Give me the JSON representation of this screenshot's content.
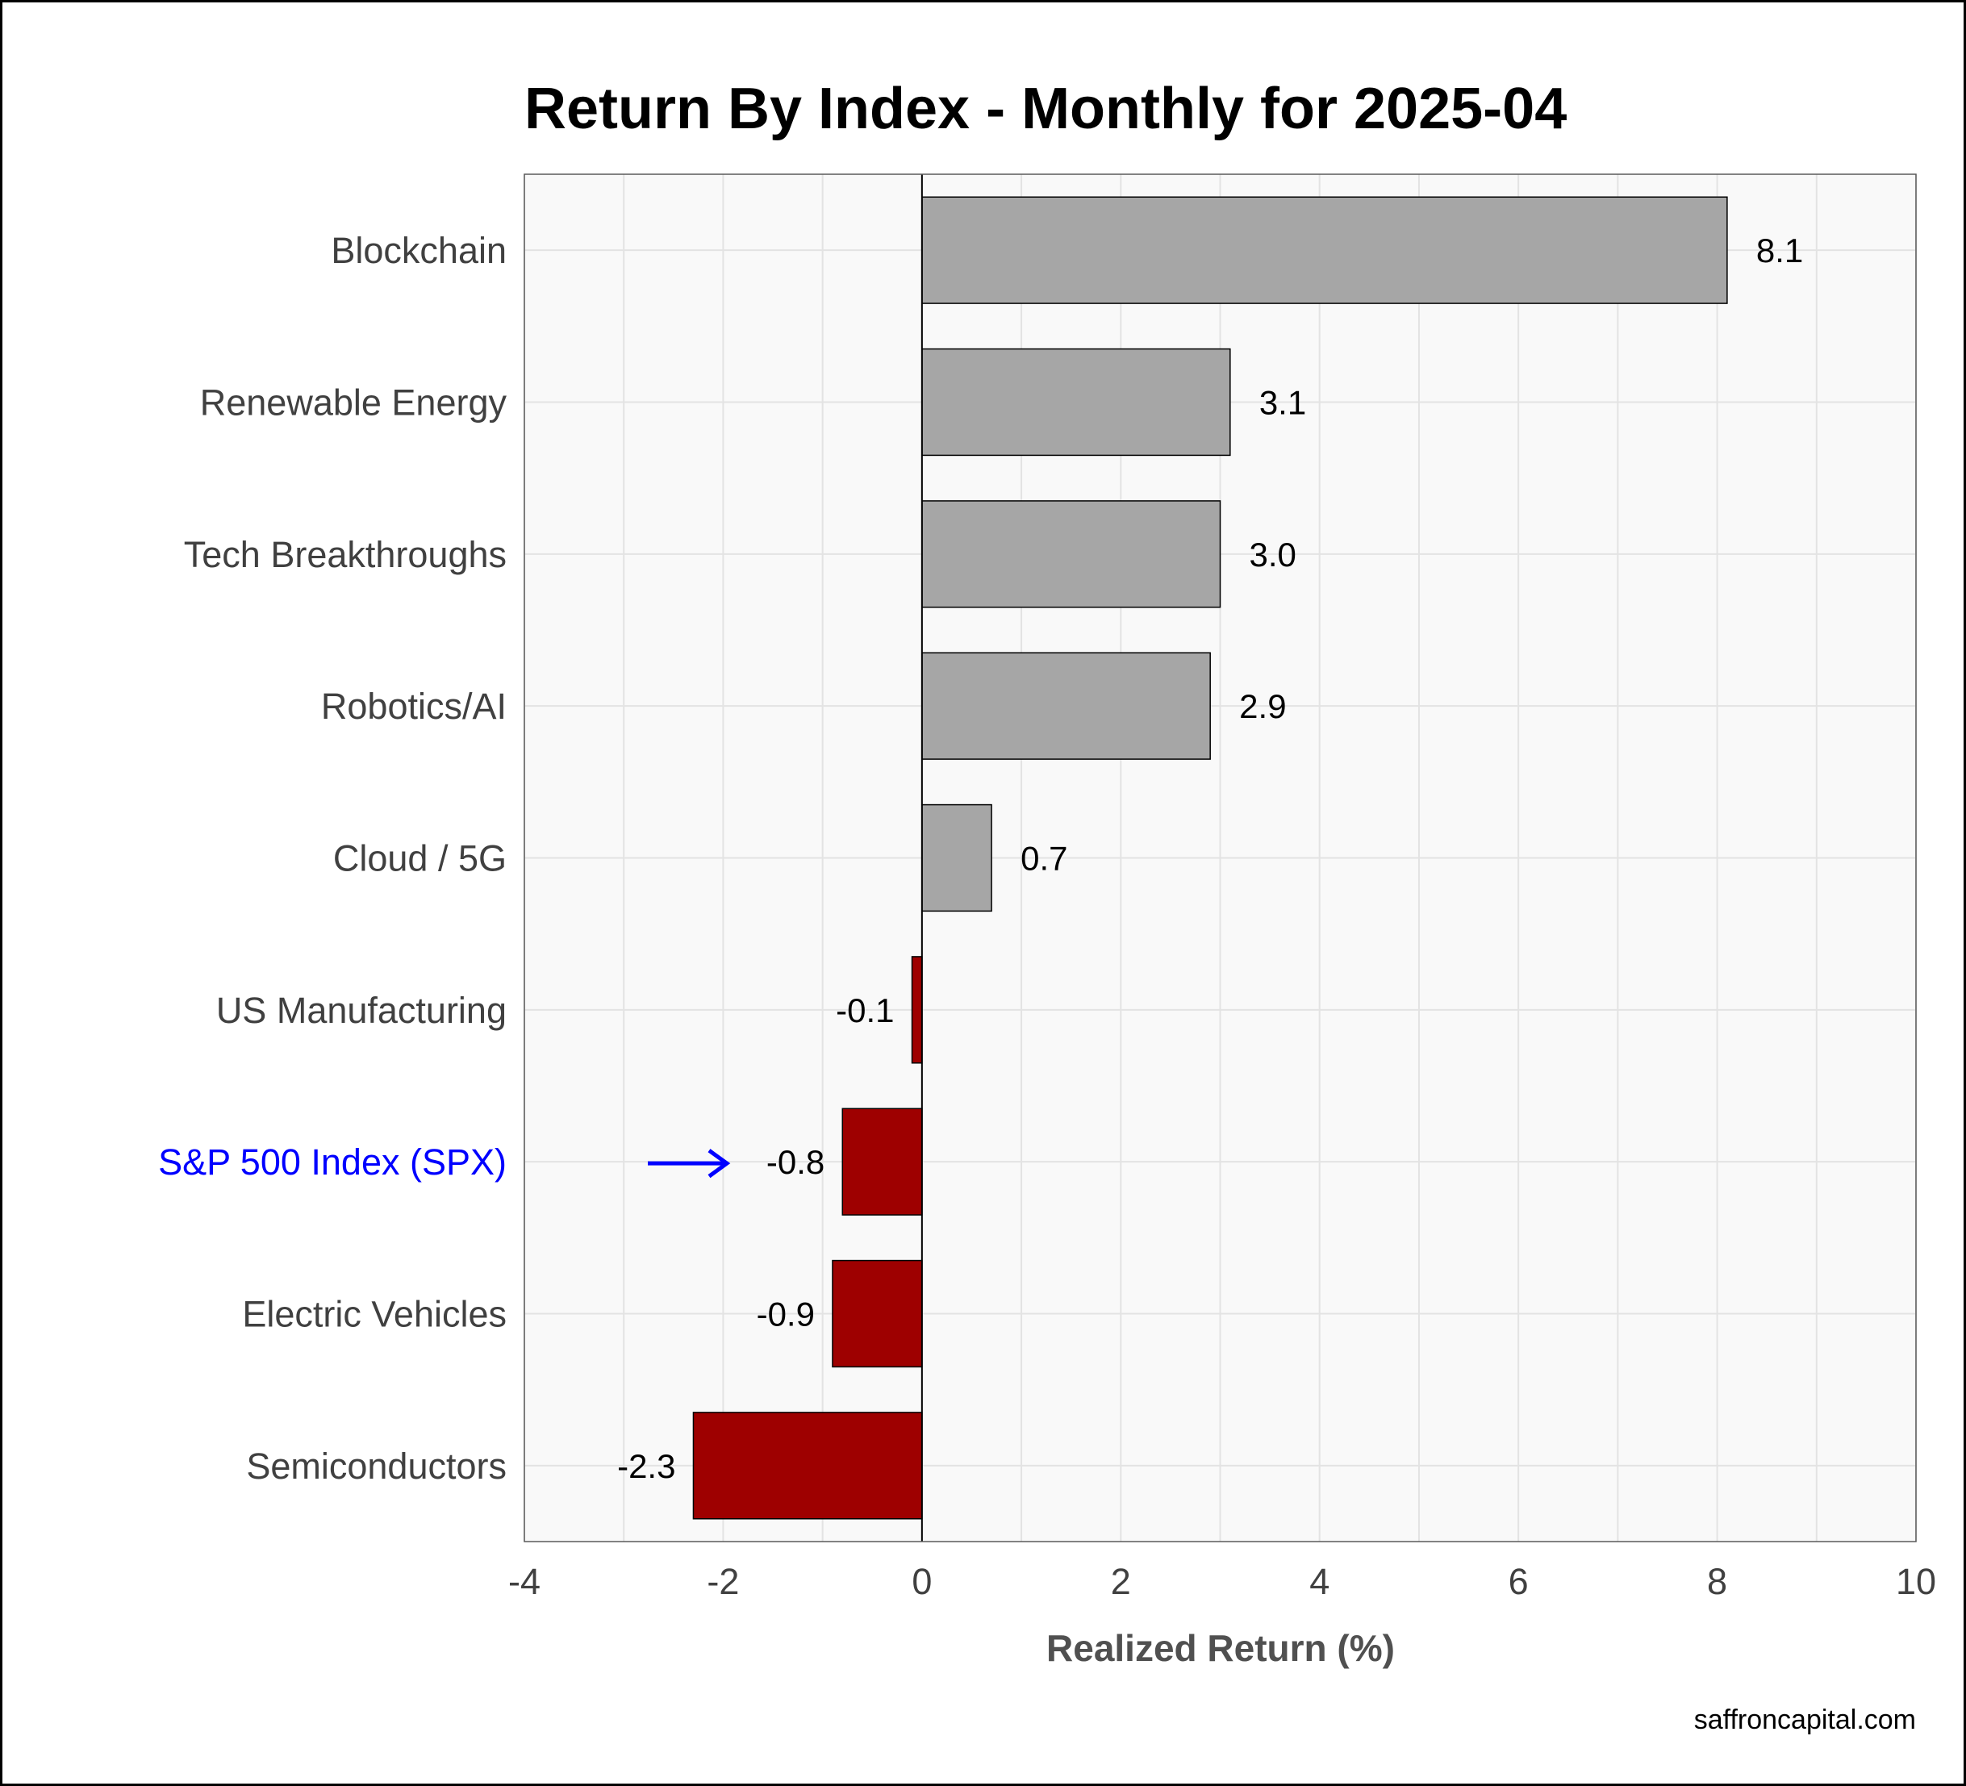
{
  "chart_data": {
    "type": "bar",
    "orientation": "horizontal",
    "title": "Return By Index - Monthly for 2025-04",
    "xlabel": "Realized Return (%)",
    "ylabel": "",
    "xlim": [
      -4,
      10
    ],
    "xticks": [
      -4,
      -2,
      0,
      2,
      4,
      6,
      8,
      10
    ],
    "grid": true,
    "categories": [
      "Blockchain",
      "Renewable Energy",
      "Tech Breakthroughs",
      "Robotics/AI",
      "Cloud / 5G",
      "US Manufacturing",
      "S&P 500 Index (SPX)",
      "Electric Vehicles",
      "Semiconductors"
    ],
    "values": [
      8.1,
      3.1,
      3.0,
      2.9,
      0.7,
      -0.1,
      -0.8,
      -0.9,
      -2.3
    ],
    "value_labels": [
      "8.1",
      "3.1",
      "3.0",
      "2.9",
      "0.7",
      "-0.1",
      "-0.8",
      "-0.9",
      "-2.3"
    ],
    "highlight": "S&P 500 Index (SPX)",
    "colors": {
      "positive": "#a6a6a6",
      "negative": "#9e0000",
      "highlight_label": "#0000ff",
      "arrow": "#0000ff",
      "panel_background": "#f9f9f9",
      "grid": "#e3e3e3"
    }
  },
  "caption": "saffroncapital.com"
}
